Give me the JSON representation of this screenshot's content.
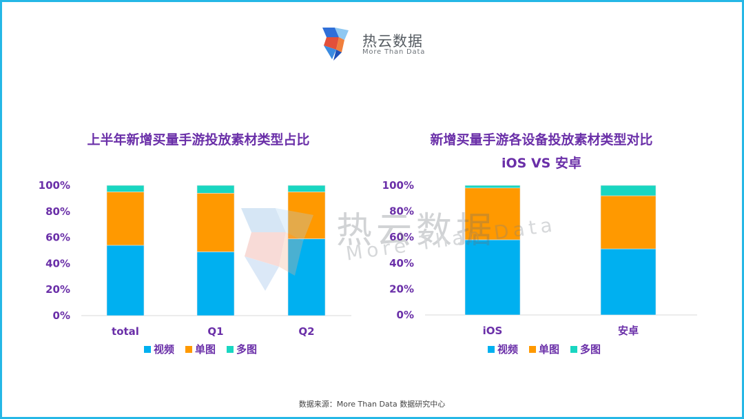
{
  "brand": {
    "name": "热云数据",
    "tagline": "More Than Data",
    "colors": {
      "blue": "#3a8be0",
      "orange": "#f07f3c",
      "red": "#e2503a",
      "lightblue": "#8ec8f2"
    }
  },
  "colors": {
    "title": "#6a2fa8",
    "border": "#25b7e6"
  },
  "footer": {
    "text": "数据来源：More Than Data 数据研究中心"
  },
  "chart_data": [
    {
      "type": "bar",
      "stacked": true,
      "title": "上半年新增买量手游投放素材类型占比",
      "categories": [
        "total",
        "Q1",
        "Q2"
      ],
      "ylim": [
        0,
        100
      ],
      "yticks": [
        "0%",
        "20%",
        "40%",
        "60%",
        "80%",
        "100%"
      ],
      "grid": false,
      "legend_position": "bottom",
      "series": [
        {
          "name": "视频",
          "color": "#00b0f0",
          "values": [
            54,
            49,
            59
          ]
        },
        {
          "name": "单图",
          "color": "#ff9900",
          "values": [
            41,
            45,
            36
          ]
        },
        {
          "name": "多图",
          "color": "#19d6c1",
          "values": [
            5,
            6,
            5
          ]
        }
      ]
    },
    {
      "type": "bar",
      "stacked": true,
      "title": "新增买量手游各设备投放素材类型对比",
      "subtitle": "iOS VS 安卓",
      "categories": [
        "iOS",
        "安卓"
      ],
      "ylim": [
        0,
        100
      ],
      "yticks": [
        "0%",
        "20%",
        "40%",
        "60%",
        "80%",
        "100%"
      ],
      "grid": false,
      "legend_position": "bottom",
      "series": [
        {
          "name": "视频",
          "color": "#00b0f0",
          "values": [
            58,
            51
          ]
        },
        {
          "name": "单图",
          "color": "#ff9900",
          "values": [
            40,
            41
          ]
        },
        {
          "name": "多图",
          "color": "#19d6c1",
          "values": [
            2,
            8
          ]
        }
      ]
    }
  ]
}
